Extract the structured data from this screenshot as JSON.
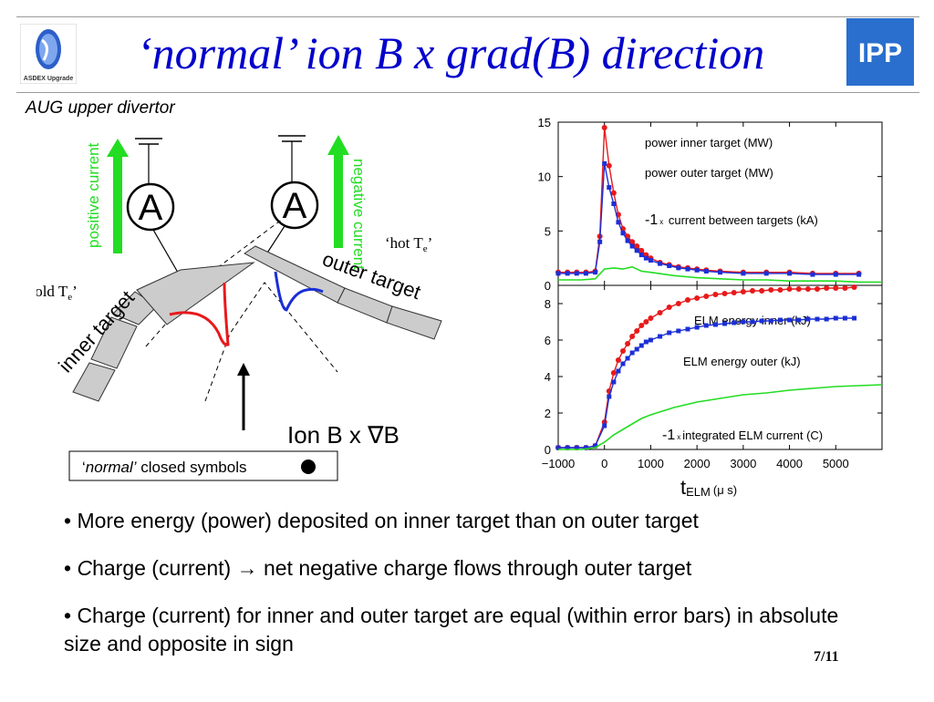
{
  "header": {
    "title": "‘normal’ ion B x grad(B) direction",
    "left_logo_text": "ASDEX Upgrade",
    "right_logo_text": "IPP"
  },
  "subtitle": "AUG upper divertor",
  "diagram": {
    "positive_current": "positive current",
    "negative_current": "negative current",
    "ammeter_symbol": "A",
    "inner_target": "inner target",
    "outer_target": "outer target",
    "hot_te": "‘hot T",
    "cold_te": "‘cold T",
    "te_sub": "e",
    "te_close": "’",
    "ion_label": "Ion B x ∇B",
    "legend_open_quote": "‘",
    "legend_normal": "normal’",
    "legend_rest": " closed symbols"
  },
  "chart_data": {
    "type": "line",
    "xlabel": "t",
    "xlabel_sub": "ELM",
    "xlabel_unit": "(μ s)",
    "xlim": [
      -1000,
      6000
    ],
    "xticks": [
      "−1000",
      "0",
      "1000",
      "2000",
      "3000",
      "4000",
      "5000"
    ],
    "xtick_values": [
      -1000,
      0,
      1000,
      2000,
      3000,
      4000,
      5000
    ],
    "panels": [
      {
        "ylim": [
          0,
          15
        ],
        "yticks": [
          "0",
          "5",
          "10",
          "15"
        ],
        "ytick_values": [
          0,
          5,
          10,
          15
        ],
        "series": [
          {
            "label_prefix": "",
            "label_x": "",
            "name": "power inner target (MW)",
            "color": "#e8191b",
            "marker": "circle",
            "x": [
              -1000,
              -800,
              -600,
              -400,
              -200,
              -100,
              0,
              100,
              200,
              300,
              400,
              500,
              600,
              700,
              800,
              900,
              1000,
              1200,
              1400,
              1600,
              1800,
              2000,
              2200,
              2500,
              3000,
              3500,
              4000,
              4500,
              5000,
              5500
            ],
            "y": [
              1.2,
              1.2,
              1.2,
              1.2,
              1.3,
              4.5,
              14.5,
              11,
              8.5,
              6.5,
              5.2,
              4.5,
              4,
              3.6,
              3.2,
              2.8,
              2.5,
              2.1,
              1.9,
              1.7,
              1.6,
              1.5,
              1.4,
              1.3,
              1.2,
              1.2,
              1.2,
              1.1,
              1.1,
              1.1
            ]
          },
          {
            "label_prefix": "",
            "label_x": "",
            "name": "power outer target (MW)",
            "color": "#1b2fd6",
            "marker": "square",
            "x": [
              -1000,
              -800,
              -600,
              -400,
              -200,
              -100,
              0,
              100,
              200,
              300,
              400,
              500,
              600,
              700,
              800,
              900,
              1000,
              1200,
              1400,
              1600,
              1800,
              2000,
              2200,
              2500,
              3000,
              3500,
              4000,
              4500,
              5000,
              5500
            ],
            "y": [
              1.1,
              1.1,
              1.1,
              1.1,
              1.2,
              4,
              11.2,
              9,
              7.5,
              5.8,
              4.8,
              4.1,
              3.6,
              3.2,
              2.8,
              2.5,
              2.3,
              2,
              1.8,
              1.6,
              1.5,
              1.4,
              1.3,
              1.2,
              1.1,
              1.1,
              1.1,
              1,
              1,
              1
            ]
          },
          {
            "label_prefix": "-1",
            "label_x": "x",
            "name": " current between targets (kA)",
            "color": "#22dd22",
            "marker": "none",
            "x": [
              -1000,
              -500,
              -200,
              0,
              200,
              400,
              600,
              800,
              1000,
              1500,
              2000,
              2500,
              3000,
              3500,
              4000,
              4500,
              5000,
              5500,
              6000
            ],
            "y": [
              0.5,
              0.5,
              0.6,
              1.5,
              1.6,
              1.5,
              1.7,
              1.3,
              1.2,
              0.9,
              0.7,
              0.6,
              0.5,
              0.5,
              0.4,
              0.4,
              0.4,
              0.3,
              0.3
            ]
          }
        ]
      },
      {
        "ylim": [
          0,
          9
        ],
        "yticks": [
          "0",
          "2",
          "4",
          "6",
          "8"
        ],
        "ytick_values": [
          0,
          2,
          4,
          6,
          8
        ],
        "series": [
          {
            "label_prefix": "",
            "label_x": "",
            "name": "ELM energy inner (kJ)",
            "color": "#e8191b",
            "marker": "circle",
            "x": [
              -1000,
              -800,
              -600,
              -400,
              -200,
              0,
              100,
              200,
              300,
              400,
              500,
              600,
              700,
              800,
              900,
              1000,
              1200,
              1400,
              1600,
              1800,
              2000,
              2200,
              2400,
              2600,
              2800,
              3000,
              3200,
              3400,
              3600,
              3800,
              4000,
              4200,
              4400,
              4600,
              4800,
              5000,
              5200,
              5400
            ],
            "y": [
              0.1,
              0.1,
              0.1,
              0.1,
              0.2,
              1.5,
              3.2,
              4.2,
              4.9,
              5.4,
              5.8,
              6.2,
              6.5,
              6.8,
              7,
              7.2,
              7.5,
              7.8,
              8,
              8.2,
              8.3,
              8.4,
              8.5,
              8.55,
              8.6,
              8.65,
              8.7,
              8.7,
              8.75,
              8.75,
              8.8,
              8.8,
              8.8,
              8.8,
              8.85,
              8.85,
              8.85,
              8.9
            ]
          },
          {
            "label_prefix": "",
            "label_x": "",
            "name": "ELM energy outer (kJ)",
            "color": "#1b2fd6",
            "marker": "square",
            "x": [
              -1000,
              -800,
              -600,
              -400,
              -200,
              0,
              100,
              200,
              300,
              400,
              500,
              600,
              700,
              800,
              900,
              1000,
              1200,
              1400,
              1600,
              1800,
              2000,
              2200,
              2400,
              2600,
              2800,
              3000,
              3200,
              3400,
              3600,
              3800,
              4000,
              4200,
              4400,
              4600,
              4800,
              5000,
              5200,
              5400
            ],
            "y": [
              0.1,
              0.1,
              0.1,
              0.1,
              0.2,
              1.3,
              2.9,
              3.7,
              4.3,
              4.7,
              5,
              5.3,
              5.5,
              5.7,
              5.9,
              6,
              6.2,
              6.4,
              6.5,
              6.6,
              6.7,
              6.8,
              6.85,
              6.9,
              6.95,
              7,
              7,
              7.05,
              7.05,
              7.1,
              7.1,
              7.1,
              7.15,
              7.15,
              7.15,
              7.2,
              7.2,
              7.2
            ]
          },
          {
            "label_prefix": "-1",
            "label_x": "x",
            "name": "integrated ELM current (C)",
            "color": "#22dd22",
            "marker": "none",
            "x": [
              -1000,
              -500,
              -200,
              0,
              200,
              400,
              600,
              800,
              1000,
              1500,
              2000,
              2500,
              3000,
              3500,
              4000,
              4500,
              5000,
              5500,
              6000
            ],
            "y": [
              0,
              0,
              0.1,
              0.4,
              0.8,
              1.1,
              1.4,
              1.7,
              1.9,
              2.3,
              2.6,
              2.8,
              3,
              3.1,
              3.25,
              3.35,
              3.45,
              3.5,
              3.55
            ]
          }
        ]
      }
    ]
  },
  "bullets": [
    "• More energy (power) deposited on inner target than on outer target",
    "• ",
    "C",
    "harge (current) → net negative charge flows through outer target",
    "• Charge (current) for inner and outer target are equal (within error bars) in absolute size and opposite in sign"
  ],
  "page_number": "7/11"
}
